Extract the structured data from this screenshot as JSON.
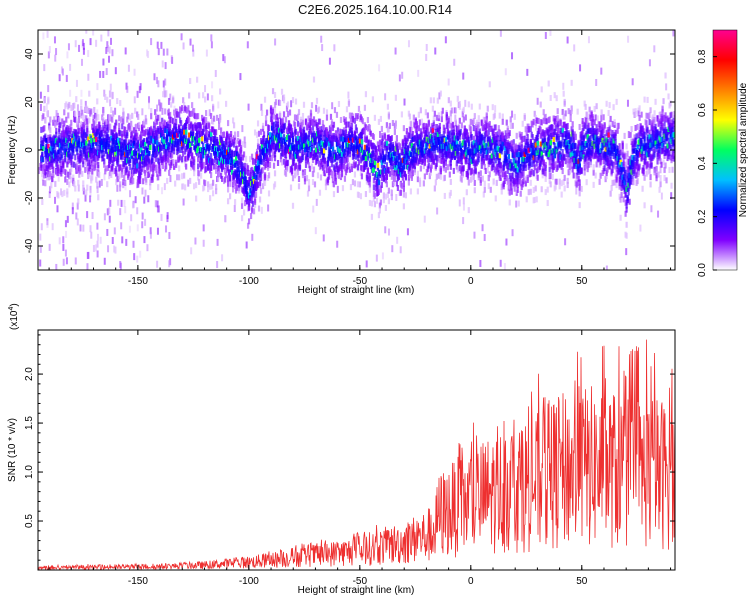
{
  "title": "C2E6.2025.164.10.00.R14",
  "chart_data": [
    {
      "type": "heatmap",
      "xlabel": "Height of straight line (km)",
      "ylabel": "Frequency (Hz)",
      "xlim": [
        -195,
        92
      ],
      "ylim": [
        -50,
        50
      ],
      "xticks": [
        -150,
        -100,
        -50,
        0,
        50
      ],
      "yticks": [
        -40,
        -20,
        0,
        20,
        40
      ],
      "colorbar": {
        "label": "Normalized spectral amplitude",
        "range": [
          0.0,
          0.9
        ],
        "ticks": [
          0.0,
          0.2,
          0.4,
          0.6,
          0.8
        ],
        "colors": [
          "#ffffff",
          "#8000ff",
          "#0000ff",
          "#00c0ff",
          "#00ff60",
          "#ffff00",
          "#ff8000",
          "#ff0000",
          "#ff0090"
        ]
      },
      "ridge": {
        "x": [
          -190,
          -180,
          -170,
          -160,
          -150,
          -140,
          -130,
          -125,
          -120,
          -115,
          -110,
          -105,
          -102,
          -100,
          -98,
          -95,
          -90,
          -85,
          -80,
          -75,
          -70,
          -65,
          -60,
          -55,
          -50,
          -45,
          -42,
          -40,
          -35,
          -32,
          -30,
          -25,
          -20,
          -15,
          -10,
          -5,
          0,
          5,
          10,
          15,
          20,
          25,
          30,
          35,
          40,
          45,
          48,
          50,
          55,
          60,
          65,
          68,
          70,
          72,
          75,
          80,
          85,
          90
        ],
        "y": [
          0,
          2,
          3,
          1,
          -2,
          3,
          5,
          3,
          1,
          0,
          -2,
          -8,
          -14,
          -18,
          -12,
          -3,
          6,
          4,
          1,
          2,
          3,
          0,
          -1,
          3,
          1,
          -5,
          -10,
          -4,
          -2,
          -7,
          -3,
          0,
          2,
          3,
          2,
          1,
          -1,
          2,
          0,
          -2,
          -7,
          -2,
          0,
          1,
          2,
          3,
          -6,
          2,
          3,
          1,
          0,
          -10,
          -17,
          -6,
          1,
          2,
          4,
          5
        ]
      }
    },
    {
      "type": "area",
      "xlabel": "Height of straight line (km)",
      "ylabel": "SNR (10 * v/v)",
      "scale_label": "(x10",
      "scale_exponent": "4",
      "scale_suffix": ")",
      "xlim": [
        -195,
        92
      ],
      "ylim": [
        0,
        2.45
      ],
      "xticks": [
        -150,
        -100,
        -50,
        0,
        50
      ],
      "yticks": [
        0.5,
        1.0,
        1.5,
        2.0
      ],
      "ytick_labels": [
        "0.5",
        "1.0",
        "1.5",
        "2.0"
      ],
      "series": [
        {
          "color": "#ee3030",
          "envelope_x": [
            -195,
            -180,
            -160,
            -140,
            -120,
            -100,
            -90,
            -80,
            -70,
            -60,
            -50,
            -40,
            -30,
            -20,
            -16,
            -15,
            -10,
            0,
            10,
            20,
            30,
            40,
            50,
            60,
            70,
            80,
            92
          ],
          "envelope_max": [
            0.05,
            0.06,
            0.06,
            0.07,
            0.09,
            0.15,
            0.2,
            0.26,
            0.3,
            0.35,
            0.4,
            0.5,
            0.55,
            0.7,
            0.75,
            1.2,
            1.35,
            1.5,
            1.55,
            1.8,
            2.0,
            2.2,
            2.4,
            2.3,
            2.3,
            2.4,
            2.35
          ],
          "envelope_mean": [
            0.02,
            0.025,
            0.03,
            0.035,
            0.05,
            0.08,
            0.1,
            0.13,
            0.15,
            0.17,
            0.2,
            0.24,
            0.28,
            0.35,
            0.38,
            0.55,
            0.6,
            0.7,
            0.78,
            0.85,
            0.9,
            1.0,
            1.05,
            1.05,
            1.0,
            1.0,
            0.98
          ]
        }
      ]
    }
  ]
}
